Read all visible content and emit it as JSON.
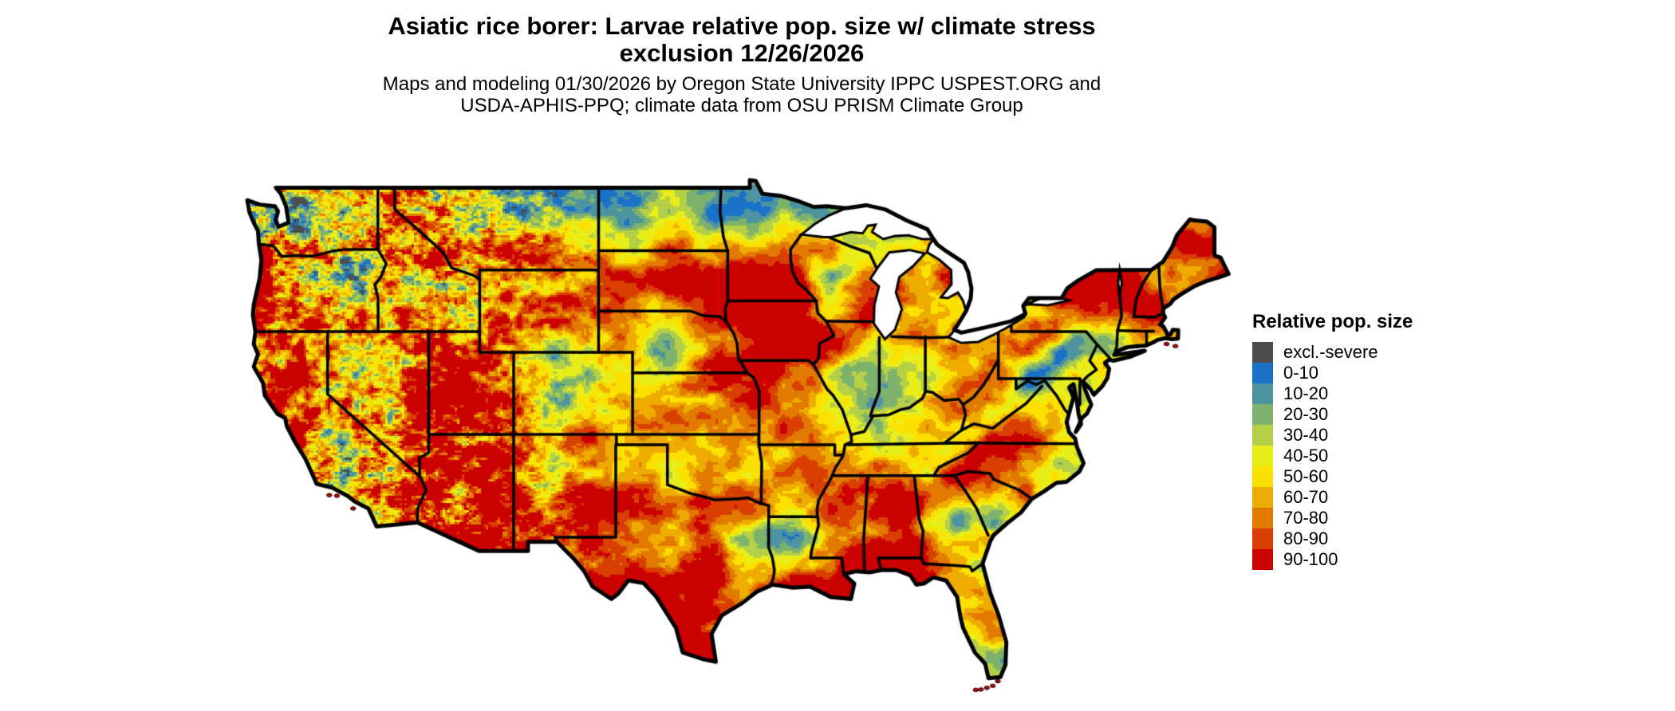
{
  "header": {
    "title_line1": "Asiatic rice borer: Larvae relative pop. size w/ climate stress",
    "title_line2": "exclusion 12/26/2026",
    "subtitle_line1": "Maps and modeling 01/30/2026 by Oregon State University IPPC USPEST.ORG and",
    "subtitle_line2": "USDA-APHIS-PPQ; climate data from OSU PRISM Climate Group"
  },
  "legend": {
    "title": "Relative pop. size",
    "entries": [
      {
        "label": "excl.-severe",
        "color": "#4d4d4d"
      },
      {
        "label": "0-10",
        "color": "#1a72c8"
      },
      {
        "label": "10-20",
        "color": "#4e93a0"
      },
      {
        "label": "20-30",
        "color": "#7db26d"
      },
      {
        "label": "30-40",
        "color": "#b5cf46"
      },
      {
        "label": "40-50",
        "color": "#e7ee1a"
      },
      {
        "label": "50-60",
        "color": "#fbe000"
      },
      {
        "label": "60-70",
        "color": "#efac00"
      },
      {
        "label": "70-80",
        "color": "#e27a00"
      },
      {
        "label": "80-90",
        "color": "#d83f00"
      },
      {
        "label": "90-100",
        "color": "#cb0000"
      }
    ]
  },
  "map": {
    "region": "Continental United States",
    "style": "classified raster, 10% population-size bins plus exclusion class",
    "dominant_class": "90-100",
    "water_fill": "#ffffff",
    "boundary_color": "#000000"
  }
}
